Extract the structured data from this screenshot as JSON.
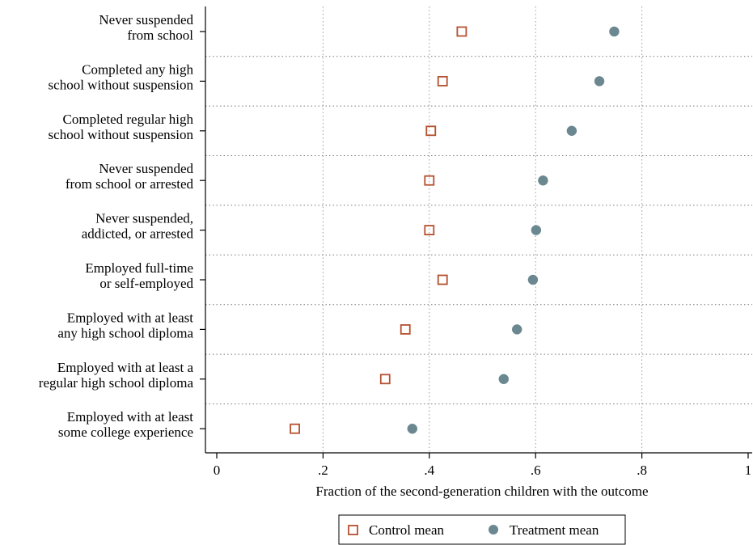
{
  "chart_data": {
    "type": "scatter",
    "orientation": "horizontal-dot",
    "title": "",
    "xlabel": "Fraction of the second-generation children with the outcome",
    "ylabel": "",
    "xlim": [
      0,
      1
    ],
    "xticks": [
      {
        "value": 0,
        "label": "0"
      },
      {
        "value": 0.2,
        "label": ".2"
      },
      {
        "value": 0.4,
        "label": ".4"
      },
      {
        "value": 0.6,
        "label": ".6"
      },
      {
        "value": 0.8,
        "label": ".8"
      },
      {
        "value": 1,
        "label": "1"
      }
    ],
    "grid": "vertical dotted at x ticks; horizontal dotted between categories",
    "legend_position": "bottom-center",
    "categories": [
      [
        "Never suspended",
        "from school"
      ],
      [
        "Completed any high",
        "school without suspension"
      ],
      [
        "Completed regular high",
        "school without suspension"
      ],
      [
        "Never suspended",
        "from school or arrested"
      ],
      [
        "Never suspended,",
        "addicted, or arrested"
      ],
      [
        "Employed full-time",
        "or self-employed"
      ],
      [
        "Employed with at least",
        "any high school diploma"
      ],
      [
        "Employed with at least a",
        "regular high school diploma"
      ],
      [
        "Employed with at least",
        "some college experience"
      ]
    ],
    "series": [
      {
        "name": "Control mean",
        "marker": "hollow-square",
        "color": "#b5502e",
        "values": [
          0.461,
          0.425,
          0.403,
          0.4,
          0.4,
          0.425,
          0.355,
          0.317,
          0.147
        ]
      },
      {
        "name": "Treatment mean",
        "marker": "filled-circle",
        "color": "#6b8891",
        "values": [
          0.748,
          0.72,
          0.668,
          0.614,
          0.601,
          0.595,
          0.565,
          0.54,
          0.368
        ]
      }
    ]
  }
}
